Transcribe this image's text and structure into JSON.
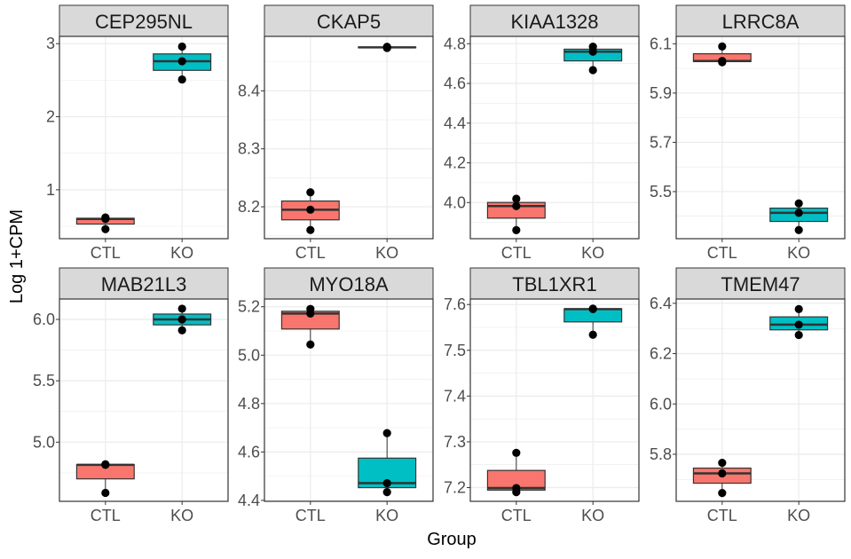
{
  "chart_data": {
    "type": "boxplot",
    "xlabel": "Group",
    "ylabel": "Log 1+CPM",
    "categories": [
      "CTL",
      "KO"
    ],
    "colors": {
      "CTL": "#F8766D",
      "KO": "#00BFC4"
    },
    "grid": true,
    "legend": "none",
    "facets": [
      {
        "title": "CEP295NL",
        "ylim": [
          0.33,
          3.1
        ],
        "yticks": [
          1,
          2,
          3
        ],
        "minor": [
          0.5,
          1.5,
          2.5
        ],
        "points": {
          "CTL": [
            0.46,
            0.6,
            0.62
          ],
          "KO": [
            2.51,
            2.76,
            2.96
          ]
        }
      },
      {
        "title": "CKAP5",
        "ylim": [
          8.145,
          8.494
        ],
        "yticks": [
          8.2,
          8.3,
          8.4
        ],
        "minor": [
          8.15,
          8.25,
          8.35,
          8.45
        ],
        "points": {
          "CTL": [
            8.16,
            8.195,
            8.225
          ],
          "KO": [
            8.474,
            8.475,
            8.476
          ]
        }
      },
      {
        "title": "KIAA1328",
        "ylim": [
          3.818,
          4.837
        ],
        "yticks": [
          4.0,
          4.2,
          4.4,
          4.6,
          4.8
        ],
        "minor": [
          3.9,
          4.1,
          4.3,
          4.5,
          4.7
        ],
        "points": {
          "CTL": [
            3.861,
            3.982,
            4.019
          ],
          "KO": [
            4.667,
            4.76,
            4.785
          ]
        }
      },
      {
        "title": "LRRC8A",
        "ylim": [
          5.309,
          6.13
        ],
        "yticks": [
          5.5,
          5.7,
          5.9,
          6.1
        ],
        "minor": [
          5.4,
          5.6,
          5.8,
          6.0
        ],
        "points": {
          "CTL": [
            6.025,
            6.03,
            6.089
          ],
          "KO": [
            5.344,
            5.414,
            5.452
          ]
        }
      },
      {
        "title": "MAB21L3",
        "ylim": [
          4.518,
          6.166
        ],
        "yticks": [
          5.0,
          5.5,
          6.0
        ],
        "minor": [
          4.75,
          5.25,
          5.75
        ],
        "points": {
          "CTL": [
            4.587,
            4.815,
            4.82
          ],
          "KO": [
            5.911,
            6.0,
            6.087
          ]
        }
      },
      {
        "title": "MYO18A",
        "ylim": [
          4.396,
          5.232
        ],
        "yticks": [
          4.4,
          4.6,
          4.8,
          5.0,
          5.2
        ],
        "minor": [
          4.5,
          4.7,
          4.9,
          5.1
        ],
        "points": {
          "CTL": [
            5.044,
            5.172,
            5.191
          ],
          "KO": [
            4.434,
            4.471,
            4.678
          ]
        }
      },
      {
        "title": "TBL1XR1",
        "ylim": [
          7.17,
          7.612
        ],
        "yticks": [
          7.2,
          7.3,
          7.4,
          7.5,
          7.6
        ],
        "minor": [
          7.25,
          7.35,
          7.45,
          7.55
        ],
        "points": {
          "CTL": [
            7.19,
            7.199,
            7.276
          ],
          "KO": [
            7.534,
            7.59,
            7.591
          ]
        }
      },
      {
        "title": "TMEM47",
        "ylim": [
          5.613,
          6.417
        ],
        "yticks": [
          5.8,
          6.0,
          6.2,
          6.4
        ],
        "minor": [
          5.7,
          5.9,
          6.1,
          6.3
        ],
        "points": {
          "CTL": [
            5.646,
            5.724,
            5.766
          ],
          "KO": [
            6.274,
            6.315,
            6.377
          ]
        }
      }
    ]
  }
}
